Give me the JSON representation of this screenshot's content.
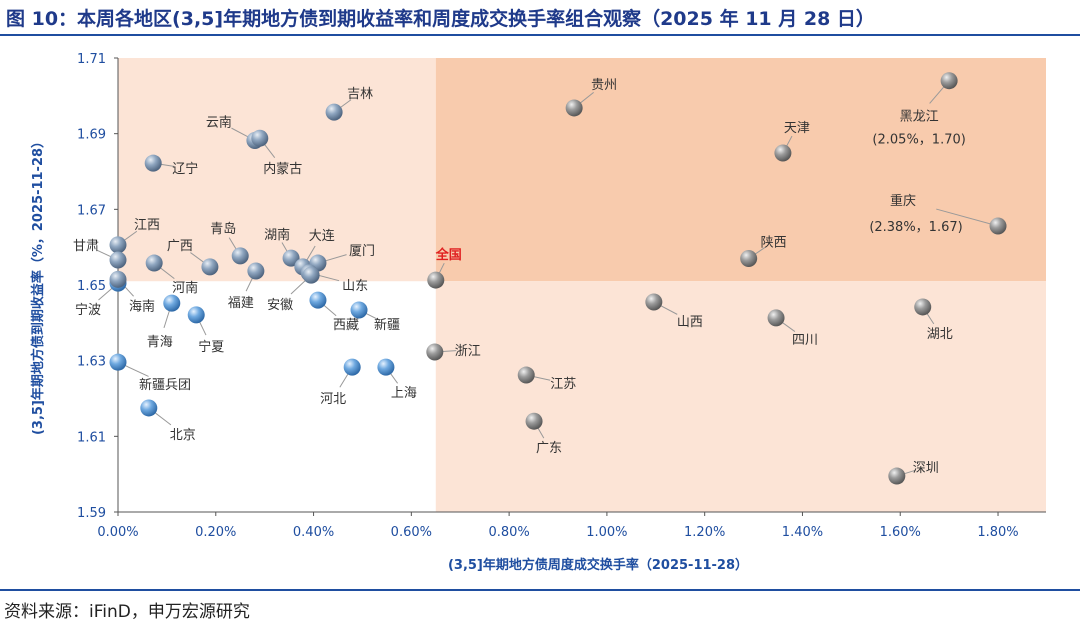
{
  "title": "图 10：本周各地区(3,5]年期地方债到期收益率和周度成交换手率组合观察（2025 年 11 月 28 日）",
  "source": "资料来源：iFinD，申万宏源研究",
  "colors": {
    "title": "#1f3a8a",
    "axis_title": "#1f4ea0",
    "quad_light": "#fce4d6",
    "quad_dark": "#f8cbad",
    "ball_blue": "#5b9bd5",
    "ball_steel": "#8fa6c0",
    "ball_gray": "#9b9b9b",
    "highlight": "#e02020"
  },
  "chart_data": {
    "type": "scatter",
    "xlabel": "(3,5]年期地方债周度成交换手率（2025-11-28）",
    "ylabel": "(3,5]年期地方债到期收益率（%，2025-11-28）",
    "xlim": [
      0,
      1.9
    ],
    "ylim": [
      1.59,
      1.71
    ],
    "x_unit": "%",
    "xticks": [
      "0.00%",
      "0.20%",
      "0.40%",
      "0.60%",
      "0.80%",
      "1.00%",
      "1.20%",
      "1.40%",
      "1.60%",
      "1.80%"
    ],
    "yticks": [
      "1.59",
      "1.61",
      "1.63",
      "1.65",
      "1.67",
      "1.69",
      "1.71"
    ],
    "grid": false,
    "quadrant_split": {
      "x": 0.65,
      "y": 1.651
    },
    "points": [
      {
        "name": "吉林",
        "x": 0.442,
        "y": 1.6957
      },
      {
        "name": "贵州",
        "x": 0.933,
        "y": 1.6968
      },
      {
        "name": "黑龙江",
        "x": 1.7,
        "y": 1.704,
        "annotation": "(2.05%，1.70)"
      },
      {
        "name": "云南",
        "x": 0.28,
        "y": 1.6882
      },
      {
        "name": "内蒙古",
        "x": 0.29,
        "y": 1.6888
      },
      {
        "name": "辽宁",
        "x": 0.072,
        "y": 1.6822
      },
      {
        "name": "天津",
        "x": 1.36,
        "y": 1.6849
      },
      {
        "name": "重庆",
        "x": 1.8,
        "y": 1.6656,
        "annotation": "(2.38%，1.67)"
      },
      {
        "name": "江西",
        "x": 0.0,
        "y": 1.6606
      },
      {
        "name": "甘肃",
        "x": 0.0,
        "y": 1.6566
      },
      {
        "name": "广西",
        "x": 0.188,
        "y": 1.6548
      },
      {
        "name": "青岛",
        "x": 0.25,
        "y": 1.6577
      },
      {
        "name": "湖南",
        "x": 0.354,
        "y": 1.6571
      },
      {
        "name": "大连",
        "x": 0.378,
        "y": 1.6548
      },
      {
        "name": "厦门",
        "x": 0.409,
        "y": 1.6558
      },
      {
        "name": "河南",
        "x": 0.074,
        "y": 1.6558
      },
      {
        "name": "福建",
        "x": 0.282,
        "y": 1.6537
      },
      {
        "name": "山东",
        "x": 0.391,
        "y": 1.6532
      },
      {
        "name": "安徽",
        "x": 0.395,
        "y": 1.6526
      },
      {
        "name": "全国",
        "x": 0.65,
        "y": 1.6513,
        "highlight": true
      },
      {
        "name": "宁波",
        "x": 0.0,
        "y": 1.6505
      },
      {
        "name": "海南",
        "x": 0.0,
        "y": 1.6515
      },
      {
        "name": "青海",
        "x": 0.11,
        "y": 1.6452
      },
      {
        "name": "宁夏",
        "x": 0.16,
        "y": 1.6421
      },
      {
        "name": "西藏",
        "x": 0.409,
        "y": 1.646
      },
      {
        "name": "新疆",
        "x": 0.493,
        "y": 1.6434
      },
      {
        "name": "山西",
        "x": 1.096,
        "y": 1.6455
      },
      {
        "name": "陕西",
        "x": 1.29,
        "y": 1.657
      },
      {
        "name": "湖北",
        "x": 1.646,
        "y": 1.6442
      },
      {
        "name": "四川",
        "x": 1.346,
        "y": 1.6413
      },
      {
        "name": "浙江",
        "x": 0.648,
        "y": 1.6323
      },
      {
        "name": "新疆兵团",
        "x": 0.0,
        "y": 1.6296
      },
      {
        "name": "河北",
        "x": 0.479,
        "y": 1.6283
      },
      {
        "name": "上海",
        "x": 0.548,
        "y": 1.6283
      },
      {
        "name": "江苏",
        "x": 0.835,
        "y": 1.6262
      },
      {
        "name": "北京",
        "x": 0.063,
        "y": 1.6175
      },
      {
        "name": "广东",
        "x": 0.851,
        "y": 1.614
      },
      {
        "name": "深圳",
        "x": 1.593,
        "y": 1.5995
      }
    ]
  }
}
